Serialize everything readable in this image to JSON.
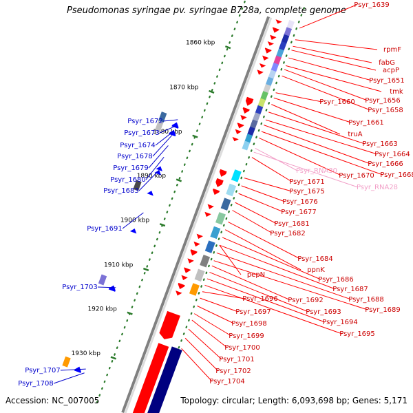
{
  "title": "Pseudomonas syringae pv. syringae B728a, complete genome",
  "footer": {
    "accession": "Accession: NC_007005",
    "summary": "Topology: circular; Length: 6,093,698 bp; Genes: 5,171"
  },
  "colors": {
    "forward_gene": "#ff0000",
    "reverse_gene": "#0000ff",
    "rna_label": "#f2a0c8",
    "tick": "#2a7a2a",
    "backbone": "#808080"
  },
  "chart_data": {
    "type": "genome_map",
    "scale_unit": "kbp",
    "scale_ticks": [
      {
        "label": "1860 kbp",
        "kbp": 1860
      },
      {
        "label": "1870 kbp",
        "kbp": 1870
      },
      {
        "label": "1880 kbp",
        "kbp": 1880
      },
      {
        "label": "1890 kbp",
        "kbp": 1890
      },
      {
        "label": "1900 kbp",
        "kbp": 1900
      },
      {
        "label": "1910 kbp",
        "kbp": 1910
      },
      {
        "label": "1920 kbp",
        "kbp": 1920
      },
      {
        "label": "1930 kbp",
        "kbp": 1930
      }
    ],
    "reverse_strand_labels": [
      "Psyr_1672",
      "Psyr_1673",
      "Psyr_1674",
      "Psyr_1678",
      "Psyr_1679",
      "Psyr_1680",
      "Psyr_1683",
      "Psyr_1691",
      "Psyr_1703",
      "Psyr_1707",
      "Psyr_1708"
    ],
    "forward_strand_labels": [
      "Psyr_1639",
      "rpmF",
      "fabG",
      "acpP",
      "Psyr_1651",
      "tmk",
      "Psyr_1656",
      "Psyr_1658",
      "Psyr_1660",
      "Psyr_1661",
      "truA",
      "Psyr_1663",
      "Psyr_1664",
      "Psyr_1666",
      "Psyr_1668",
      "Psyr_1670",
      "Psyr_1671",
      "Psyr_1675",
      "Psyr_1676",
      "Psyr_1677",
      "Psyr_1681",
      "Psyr_1682",
      "Psyr_1684",
      "ppnK",
      "pepN",
      "Psyr_1686",
      "Psyr_1687",
      "Psyr_1688",
      "Psyr_1689",
      "Psyr_1692",
      "Psyr_1693",
      "Psyr_1694",
      "Psyr_1695",
      "Psyr_1696",
      "Psyr_1697",
      "Psyr_1698",
      "Psyr_1699",
      "Psyr_1700",
      "Psyr_1701",
      "Psyr_1702",
      "Psyr_1704"
    ],
    "rna_labels": [
      "Psyr_RNA30",
      "Psyr_RNA28"
    ]
  }
}
